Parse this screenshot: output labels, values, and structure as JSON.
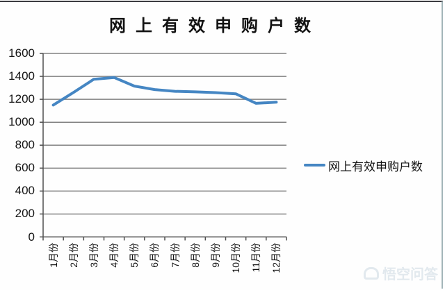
{
  "chart_data": {
    "type": "line",
    "title": "网上有效申购户数",
    "categories": [
      "1月份",
      "2月份",
      "3月份",
      "4月份",
      "5月份",
      "6月份",
      "7月份",
      "8月份",
      "9月份",
      "10月份",
      "11月份",
      "12月份"
    ],
    "series": [
      {
        "name": "网上有效申购户数",
        "values": [
          1150,
          1260,
          1375,
          1390,
          1315,
          1285,
          1270,
          1265,
          1258,
          1248,
          1165,
          1175
        ],
        "color": "#4586c3"
      }
    ],
    "ylim": [
      0,
      1600
    ],
    "ytick_step": 200,
    "yticks": [
      0,
      200,
      400,
      600,
      800,
      1000,
      1200,
      1400,
      1600
    ],
    "grid": "horizontal",
    "legend_position": "right"
  },
  "legend": {
    "label": "网上有效申购户数"
  },
  "watermark": {
    "text": "悟空问答",
    "icon": "wukong-logo-icon"
  },
  "colors": {
    "line": "#4586c3",
    "gridline": "#818181",
    "axis": "#4f4f4f",
    "title": "#121212",
    "watermark": "#e2e9ee",
    "background": "#fefefe"
  }
}
